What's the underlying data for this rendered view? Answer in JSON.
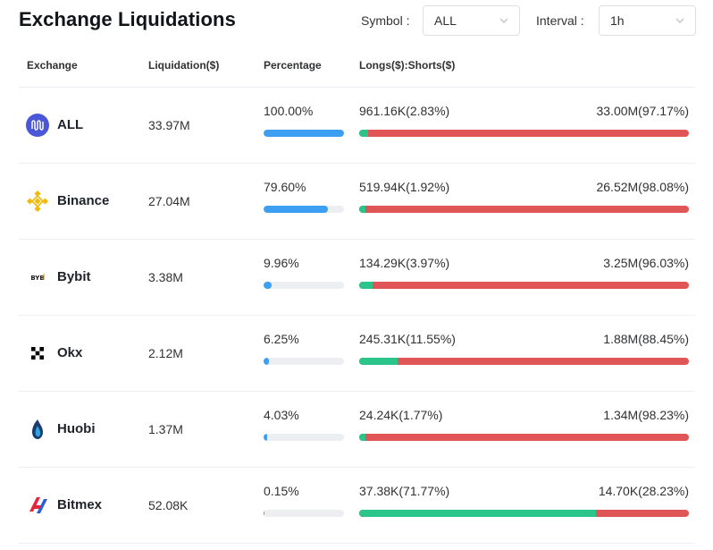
{
  "title": "Exchange Liquidations",
  "controls": {
    "symbol_label": "Symbol :",
    "symbol_value": "ALL",
    "interval_label": "Interval :",
    "interval_value": "1h"
  },
  "columns": {
    "exchange": "Exchange",
    "liquidation": "Liquidation($)",
    "percentage": "Percentage",
    "longs_shorts": "Longs($):Shorts($)"
  },
  "colors": {
    "percent_bar": "#3d9ff1",
    "longs": "#2bc48a",
    "shorts": "#e05555"
  },
  "rows": [
    {
      "exchange": "ALL",
      "icon": "all-exchanges-icon",
      "liquidation": "33.97M",
      "percentage": "100.00%",
      "percentage_value": 100.0,
      "longs": "961.16K(2.83%)",
      "shorts": "33.00M(97.17%)",
      "long_share": 2.83
    },
    {
      "exchange": "Binance",
      "icon": "binance-icon",
      "liquidation": "27.04M",
      "percentage": "79.60%",
      "percentage_value": 79.6,
      "longs": "519.94K(1.92%)",
      "shorts": "26.52M(98.08%)",
      "long_share": 1.92
    },
    {
      "exchange": "Bybit",
      "icon": "bybit-icon",
      "liquidation": "3.38M",
      "percentage": "9.96%",
      "percentage_value": 9.96,
      "longs": "134.29K(3.97%)",
      "shorts": "3.25M(96.03%)",
      "long_share": 3.97
    },
    {
      "exchange": "Okx",
      "icon": "okx-icon",
      "liquidation": "2.12M",
      "percentage": "6.25%",
      "percentage_value": 6.25,
      "longs": "245.31K(11.55%)",
      "shorts": "1.88M(88.45%)",
      "long_share": 11.55
    },
    {
      "exchange": "Huobi",
      "icon": "huobi-icon",
      "liquidation": "1.37M",
      "percentage": "4.03%",
      "percentage_value": 4.03,
      "longs": "24.24K(1.77%)",
      "shorts": "1.34M(98.23%)",
      "long_share": 1.77
    },
    {
      "exchange": "Bitmex",
      "icon": "bitmex-icon",
      "liquidation": "52.08K",
      "percentage": "0.15%",
      "percentage_value": 0.15,
      "longs": "37.38K(71.77%)",
      "shorts": "14.70K(28.23%)",
      "long_share": 71.77
    }
  ]
}
